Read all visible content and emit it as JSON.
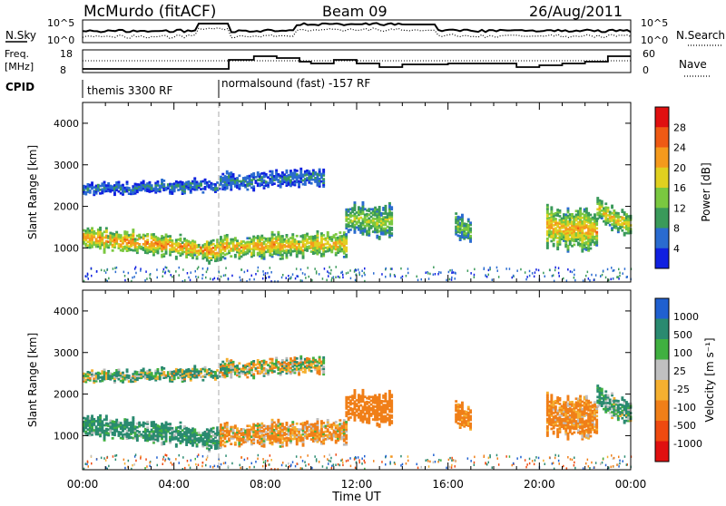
{
  "header": {
    "station": "McMurdo (fitACF)",
    "beam": "Beam 09",
    "date": "26/Aug/2011"
  },
  "noise_panel": {
    "left_label": "N.Sky",
    "right_label": "N.Search",
    "left_ticks": [
      "10^5",
      "10^0"
    ],
    "right_ticks": [
      "10^5",
      "10^0"
    ]
  },
  "freq_panel": {
    "left_label_1": "Freq.",
    "left_label_2": "[MHz]",
    "right_label": "Nave",
    "left_ticks": [
      "18",
      "8"
    ],
    "right_ticks": [
      "60",
      "0"
    ]
  },
  "cpid": {
    "label": "CPID",
    "segments": [
      {
        "name": "themis 3300 RF",
        "start_hour": 0
      },
      {
        "name": "normalsound (fast) -157 RF",
        "start_hour": 6
      }
    ]
  },
  "power_panel": {
    "ylabel": "Slant Range [km]",
    "cbar_label": "Power [dB]",
    "cbar_ticks": [
      "28",
      "24",
      "20",
      "16",
      "12",
      "8",
      "4"
    ]
  },
  "velocity_panel": {
    "ylabel": "Slant Range [km]",
    "cbar_label": "Velocity [m s⁻¹]",
    "cbar_ticks": [
      "1000",
      "500",
      "100",
      "25",
      "-25",
      "-100",
      "-500",
      "-1000"
    ]
  },
  "xaxis": {
    "label": "Time UT",
    "ticks": [
      "00:00",
      "04:00",
      "08:00",
      "12:00",
      "16:00",
      "20:00",
      "00:00"
    ]
  },
  "chart_data": {
    "type": "heatmap",
    "x_range_hours": [
      0,
      24
    ],
    "y_range_km": [
      180,
      4500
    ],
    "yticks_km": [
      1000,
      2000,
      3000,
      4000
    ],
    "power_colors": [
      "#1020e0",
      "#2a6bd0",
      "#3a9a5a",
      "#7ac840",
      "#e0d020",
      "#f59a1c",
      "#ef5a14",
      "#e01010"
    ],
    "velocity_colors": [
      "#e01010",
      "#ef4a10",
      "#f07f18",
      "#f5b030",
      "#c0c0c0",
      "#40b040",
      "#2a8a70",
      "#2060d0"
    ],
    "gray_color": "#b8b8b8",
    "echo_regions": [
      {
        "t0": 0.0,
        "t1": 6.0,
        "r_center_start": 1250,
        "r_center_end": 900,
        "width": 450,
        "power": 24,
        "velocity": 200
      },
      {
        "t0": 6.0,
        "t1": 11.5,
        "r_center_start": 1000,
        "r_center_end": 1100,
        "width": 500,
        "power": 22,
        "velocity": -150
      },
      {
        "t0": 11.5,
        "t1": 13.5,
        "r_center_start": 1700,
        "r_center_end": 1600,
        "width": 700,
        "power": 16,
        "velocity": -300
      },
      {
        "t0": 16.3,
        "t1": 17.0,
        "r_center_start": 1500,
        "r_center_end": 1400,
        "width": 500,
        "power": 14,
        "velocity": -250
      },
      {
        "t0": 20.3,
        "t1": 22.5,
        "r_center_start": 1500,
        "r_center_end": 1400,
        "width": 900,
        "power": 22,
        "velocity": -200
      },
      {
        "t0": 22.5,
        "t1": 24.0,
        "r_center_start": 1900,
        "r_center_end": 1500,
        "width": 500,
        "power": 20,
        "velocity": 150
      },
      {
        "t0": 0.0,
        "t1": 6.0,
        "r_center_start": 2400,
        "r_center_end": 2500,
        "width": 250,
        "power": 8,
        "velocity": 80
      },
      {
        "t0": 6.0,
        "t1": 10.5,
        "r_center_start": 2600,
        "r_center_end": 2700,
        "width": 350,
        "power": 8,
        "velocity": 0
      }
    ]
  }
}
